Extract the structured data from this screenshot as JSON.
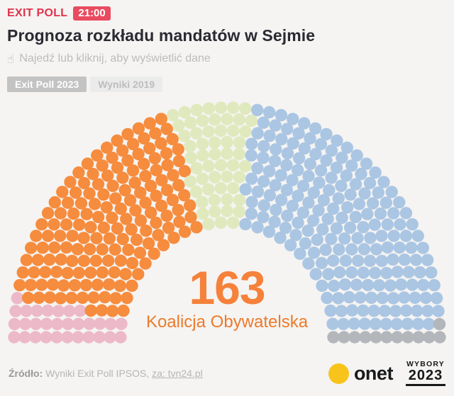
{
  "theme": {
    "background": "#f5f4f2",
    "accent_red": "#e0324c",
    "badge_bg": "#ea4b60",
    "accent_orange": "#f6813b",
    "onet_yellow": "#f8c41c"
  },
  "header": {
    "kicker": "EXIT POLL",
    "time_badge": "21:00",
    "title": "Prognoza rozkładu mandatów w Sejmie",
    "hint": "Najedź lub kliknij, aby wyświetlić dane",
    "tabs": [
      {
        "label": "Exit Poll 2023",
        "active": true
      },
      {
        "label": "Wyniki 2019",
        "active": false
      }
    ]
  },
  "chart_data": {
    "type": "pie",
    "subtype": "parliament-hemicycle",
    "title": "Prognoza rozkładu mandatów w Sejmie",
    "total_seats": 460,
    "legend_position": "none",
    "grid": false,
    "sections": [
      {
        "color": "#ecb9c9",
        "seats": 30
      },
      {
        "color": "#f68c3e",
        "seats": 163,
        "label": "Koalicja Obywatelska",
        "highlighted": true
      },
      {
        "color": "#dfe9bd",
        "seats": 55
      },
      {
        "color": "#abc6e3",
        "seats": 200
      },
      {
        "color": "#b3b6ba",
        "seats": 12
      }
    ],
    "center_value": "163",
    "center_label": "Koalicja Obywatelska"
  },
  "footer": {
    "source_prefix": "Źródło:",
    "source_text": "Wyniki Exit Poll IPSOS,",
    "source_link": "za: tvn24.pl",
    "onet_label": "onet",
    "election_badge_top": "WYBORY",
    "election_badge_year": "2023"
  }
}
